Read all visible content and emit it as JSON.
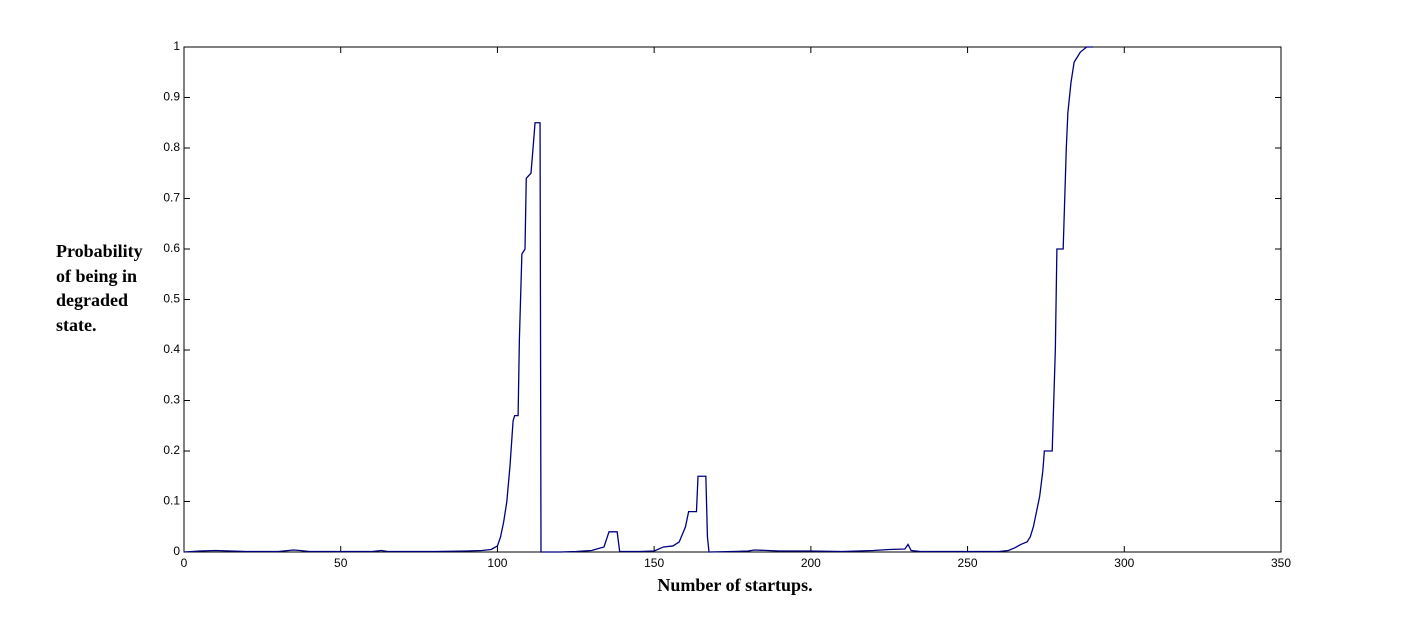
{
  "chart_data": {
    "type": "line",
    "x_label": "Number of startups.",
    "y_label": "Probability of being in degraded state.",
    "color": "#00007f",
    "x": [
      0,
      5,
      10,
      15,
      20,
      30,
      35,
      37,
      40,
      50,
      60,
      63,
      65,
      70,
      80,
      90,
      95,
      98,
      100,
      101,
      102,
      103,
      104,
      105,
      105.5,
      106.6,
      107,
      107.8,
      108.8,
      109.2,
      110.7,
      111.5,
      112,
      113.6,
      113.9,
      120,
      125,
      130,
      134,
      135.6,
      138.2,
      139,
      145,
      150,
      153,
      156,
      158,
      159,
      160,
      161,
      162,
      163.5,
      164,
      166.5,
      167,
      167.5,
      175,
      180,
      182,
      190,
      200,
      210,
      220,
      225,
      230,
      231,
      232,
      235,
      245,
      255,
      260,
      263,
      265,
      267,
      269,
      270,
      271,
      272,
      273,
      274,
      274.5,
      277,
      278,
      278.5,
      280.5,
      281.5,
      282,
      283,
      284,
      285,
      286,
      288,
      290
    ],
    "values": [
      0,
      0.002,
      0.003,
      0.002,
      0.001,
      0.001,
      0.004,
      0.003,
      0.001,
      0.001,
      0.001,
      0.003,
      0.001,
      0.001,
      0.001,
      0.002,
      0.003,
      0.005,
      0.012,
      0.03,
      0.06,
      0.1,
      0.17,
      0.26,
      0.27,
      0.27,
      0.42,
      0.59,
      0.6,
      0.74,
      0.75,
      0.81,
      0.85,
      0.85,
      0,
      0,
      0.001,
      0.003,
      0.01,
      0.04,
      0.04,
      0.001,
      0.001,
      0.002,
      0.01,
      0.012,
      0.02,
      0.035,
      0.05,
      0.08,
      0.08,
      0.08,
      0.15,
      0.15,
      0.03,
      0,
      0.001,
      0.002,
      0.004,
      0.002,
      0.002,
      0.001,
      0.003,
      0.005,
      0.006,
      0.015,
      0.003,
      0.001,
      0.001,
      0.001,
      0.001,
      0.003,
      0.008,
      0.015,
      0.02,
      0.03,
      0.05,
      0.08,
      0.11,
      0.16,
      0.2,
      0.2,
      0.4,
      0.6,
      0.6,
      0.8,
      0.87,
      0.93,
      0.97,
      0.98,
      0.99,
      1,
      1
    ],
    "xlim": [
      0,
      350
    ],
    "xticks": [
      0,
      50,
      100,
      150,
      200,
      250,
      300,
      350
    ],
    "ylim": [
      0,
      1
    ],
    "yticks": [
      0,
      0.1,
      0.2,
      0.3,
      0.4,
      0.5,
      0.6,
      0.7,
      0.8,
      0.9,
      1
    ],
    "grid": false
  }
}
